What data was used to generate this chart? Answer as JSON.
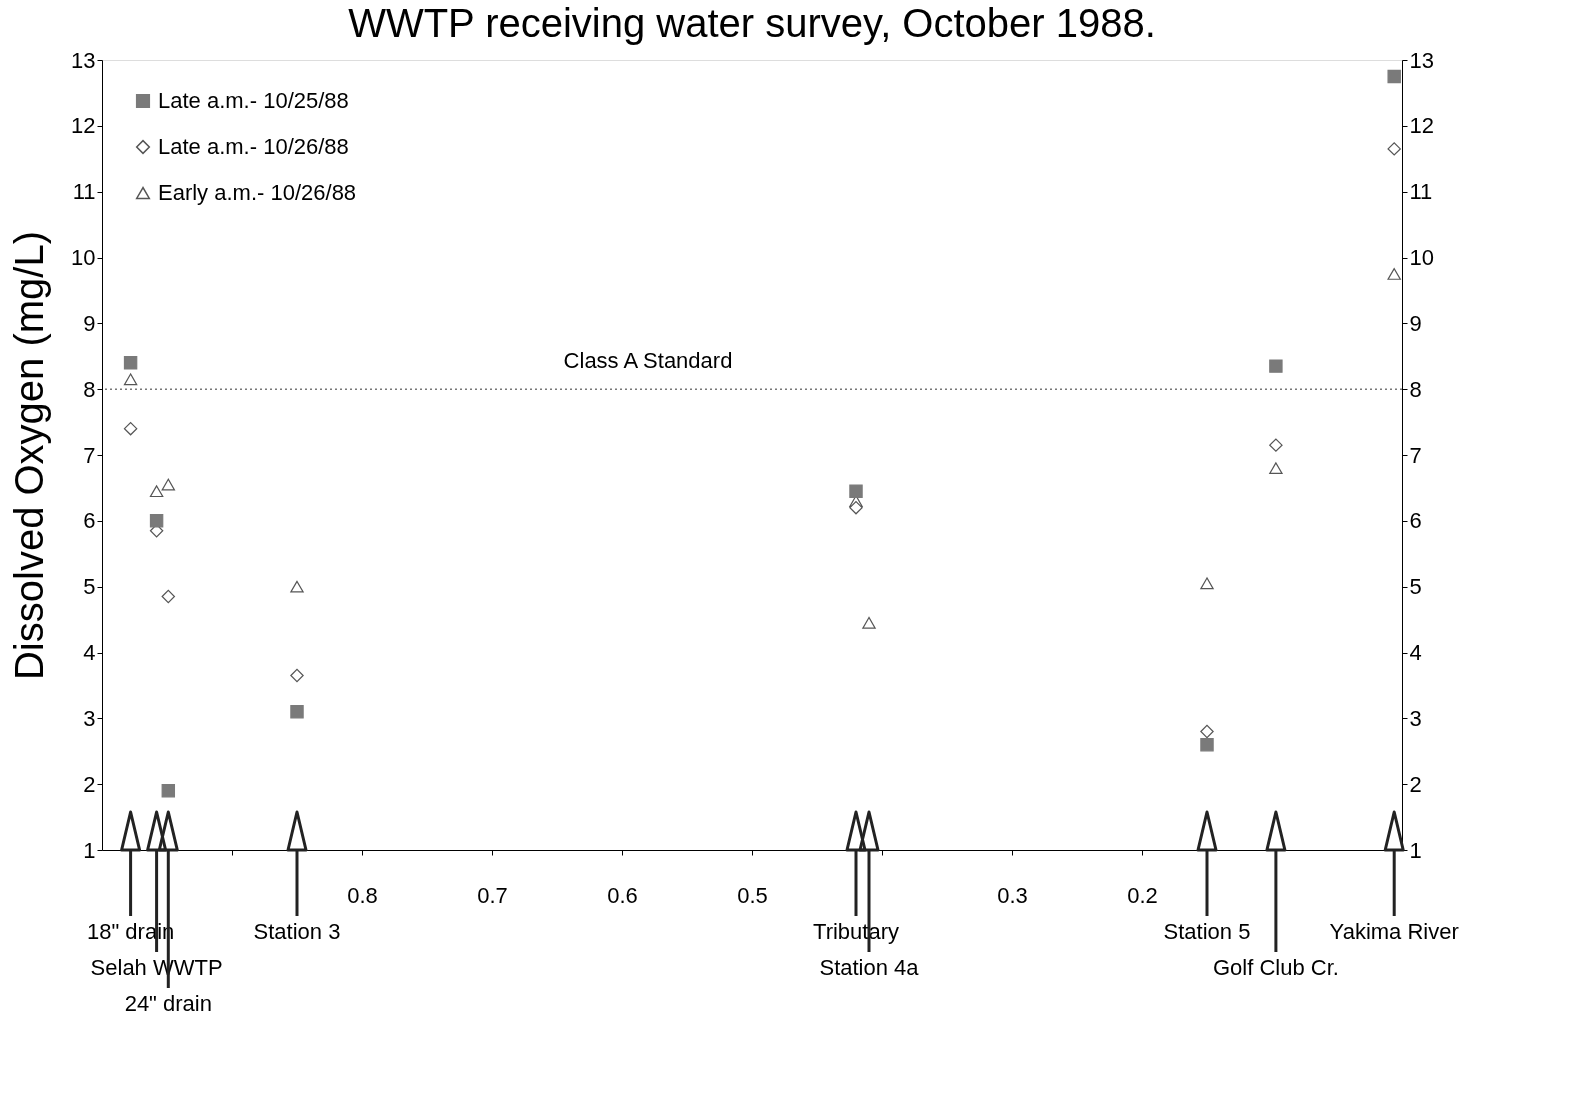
{
  "chart_data": {
    "type": "scatter",
    "title": "WWTP receiving water survey, October 1988.",
    "ylabel": "Dissolved Oxygen (mg/L)",
    "x": [
      0.978,
      0.958,
      0.949,
      0.85,
      0.42,
      0.41,
      0.15,
      0.097,
      0.006
    ],
    "series": [
      {
        "name": "Late a.m.- 10/25/88",
        "color": "#7a7a7a",
        "marker": "square",
        "values": [
          8.4,
          6.0,
          1.9,
          3.1,
          6.45,
          null,
          2.6,
          8.35,
          12.75
        ]
      },
      {
        "name": "Late a.m.- 10/26/88",
        "color": "#555555",
        "marker": "diamond",
        "values": [
          7.4,
          5.85,
          4.85,
          3.65,
          6.2,
          null,
          2.8,
          7.15,
          11.65
        ]
      },
      {
        "name": "Early a.m.- 10/26/88",
        "color": "#555555",
        "marker": "triangle",
        "values": [
          8.15,
          6.45,
          6.55,
          5.0,
          6.3,
          4.45,
          5.05,
          6.8,
          9.75
        ]
      }
    ],
    "xlim": [
      1.0,
      0.0
    ],
    "xticks": [
      {
        "value": 0.9,
        "label": null
      },
      0.8,
      0.7,
      0.6,
      0.5,
      {
        "value": 0.4,
        "label": null
      },
      0.3,
      0.2
    ],
    "ylim": [
      1,
      13
    ],
    "yticks": [
      1,
      2,
      3,
      4,
      5,
      6,
      7,
      8,
      9,
      10,
      11,
      12,
      13
    ],
    "y2lim": [
      1,
      13
    ],
    "y2ticks": [
      1,
      2,
      3,
      4,
      5,
      6,
      7,
      8,
      9,
      10,
      11,
      12,
      13
    ],
    "ref_lines": [
      {
        "axis": "y",
        "value": 8,
        "label": "Class A Standard",
        "line_style": "dotted",
        "color": "#777777"
      }
    ],
    "annotations": [
      "18\" drain",
      "Selah WWTP",
      "24\" drain",
      "Station 3",
      "Tributary",
      "Station 4a",
      "Station 5",
      "Golf Club Cr.",
      "Yakima River"
    ],
    "legend": "top left",
    "grid": false
  }
}
